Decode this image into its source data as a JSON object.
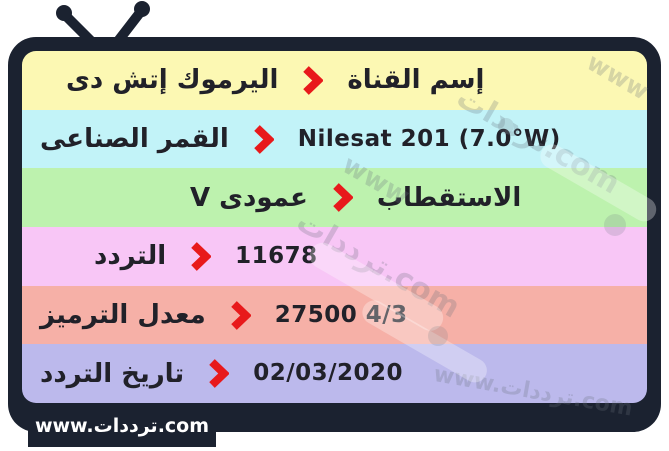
{
  "card": {
    "frame_color": "#1b2230",
    "accent_red": "#e8191b",
    "text_color": "#212129"
  },
  "rows": [
    {
      "label": "إسم القناة",
      "value": "اليرموك إتش دى",
      "value_side": "left",
      "bg": "#fcf8b3",
      "value_script": "arabic"
    },
    {
      "label": "القمر الصناعى",
      "value": "Nilesat 201 (7.0°W)",
      "value_side": "right",
      "bg": "#c2f3f8",
      "value_script": "latin"
    },
    {
      "label": "الاستقطاب",
      "value": "عمودى V",
      "value_side": "left",
      "bg": "#bdf2ae",
      "value_script": "arabic"
    },
    {
      "label": "التردد",
      "value": "11678",
      "value_side": "right",
      "bg": "#f8c6f6",
      "value_script": "latin"
    },
    {
      "label": "معدل الترميز",
      "value": "27500 4/3",
      "value_side": "right",
      "bg": "#f6b0a7",
      "value_script": "latin"
    },
    {
      "label": "تاريخ التردد",
      "value": "02/03/2020",
      "value_side": "right",
      "bg": "#bcb9ec",
      "value_script": "latin"
    }
  ],
  "footer": {
    "site": "www.ترددات.com"
  },
  "watermarks": [
    {
      "text": "ترددات.com",
      "size": 30
    },
    {
      "text": "www",
      "size": 26
    },
    {
      "text": "ترددات.com",
      "size": 30
    },
    {
      "text": "www.ترددات.com",
      "size": 22
    },
    {
      "text": "www",
      "size": 24
    }
  ]
}
